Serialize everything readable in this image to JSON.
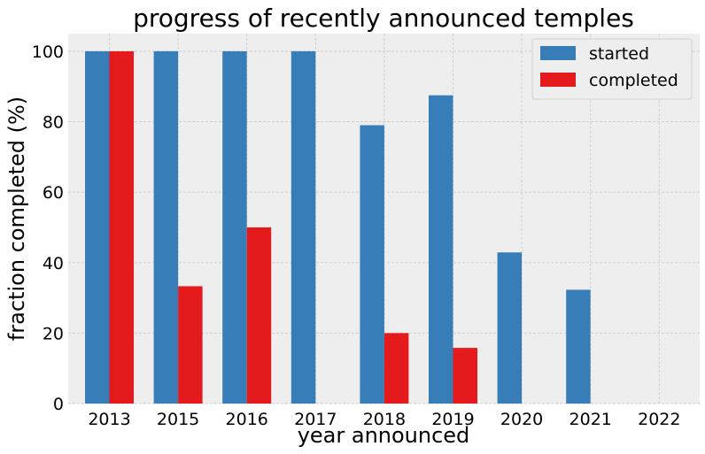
{
  "chart_data": {
    "type": "bar",
    "title": "progress of recently announced temples",
    "xlabel": "year announced",
    "ylabel": "fraction completed (%)",
    "categories": [
      "2013",
      "2015",
      "2016",
      "2017",
      "2018",
      "2019",
      "2020",
      "2021",
      "2022"
    ],
    "series": [
      {
        "name": "started",
        "color": "#377eb8",
        "values": [
          100,
          100,
          100,
          100,
          79,
          87.5,
          42.9,
          32.3,
          0
        ]
      },
      {
        "name": "completed",
        "color": "#e41a1c",
        "values": [
          100,
          33.3,
          50,
          0,
          20,
          15.8,
          0,
          0,
          0
        ]
      }
    ],
    "ylim": [
      0,
      105
    ],
    "yticks": [
      "0",
      "20",
      "40",
      "60",
      "80",
      "100"
    ],
    "grid": true,
    "legend_position": "top-right",
    "plot_background": "#eeeeee"
  }
}
